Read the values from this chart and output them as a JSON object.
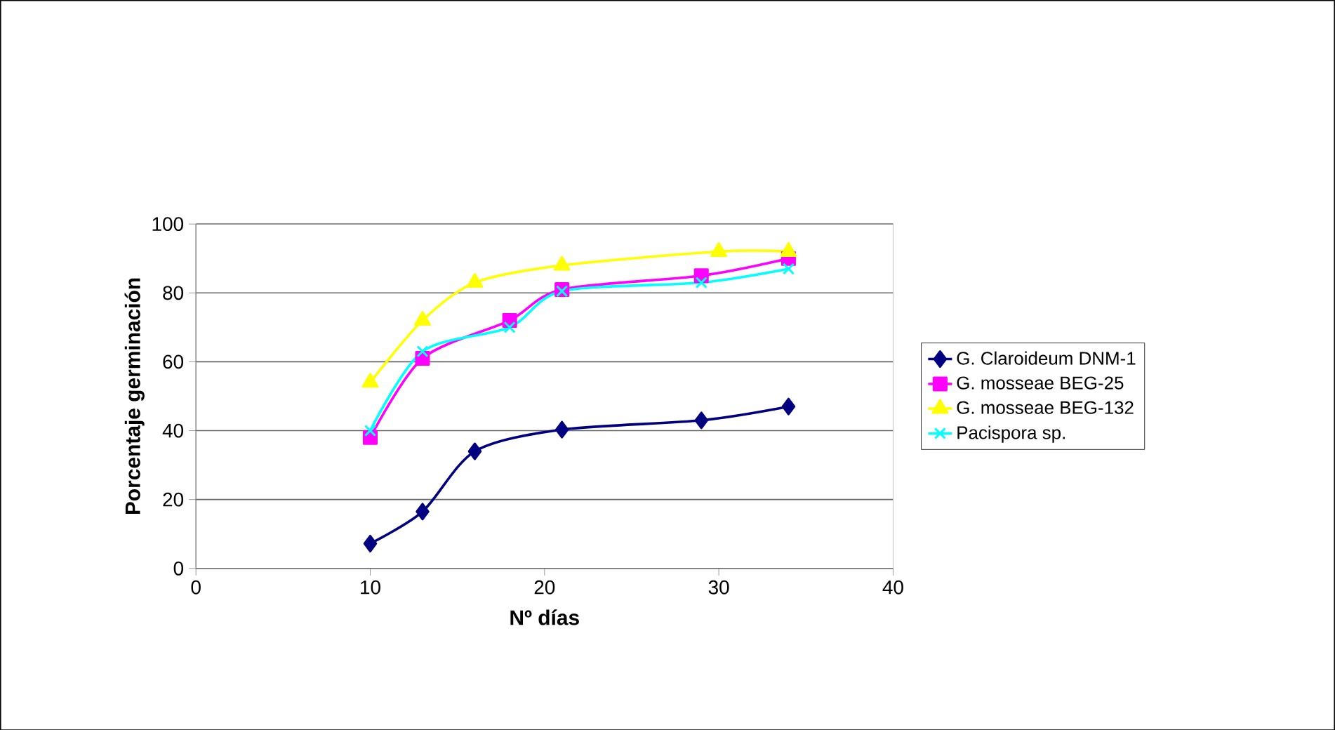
{
  "chart_data": {
    "type": "line",
    "xlabel": "Nº días",
    "ylabel": "Porcentaje germinación",
    "xlim": [
      0,
      40
    ],
    "xticks": [
      0,
      10,
      20,
      30,
      40
    ],
    "ylim": [
      0,
      100
    ],
    "yticks": [
      0,
      20,
      40,
      60,
      80,
      100
    ],
    "grid": "y",
    "legend": "right",
    "series": [
      {
        "name": "G. Claroideum DNM-1",
        "color": "#000080",
        "marker": "diamond",
        "x": [
          10,
          13,
          16,
          21,
          29,
          34
        ],
        "values": [
          7.2,
          16.5,
          34,
          40.3,
          43,
          47
        ]
      },
      {
        "name": "G. mosseae BEG-25",
        "color": "#ff00ff",
        "marker": "square",
        "x": [
          10,
          13,
          18,
          21,
          29,
          34
        ],
        "values": [
          38,
          61,
          72,
          81,
          85,
          90
        ]
      },
      {
        "name": "G. mosseae BEG-132",
        "color": "#ffff00",
        "marker": "triangle",
        "x": [
          10,
          13,
          16,
          21,
          30,
          34
        ],
        "values": [
          54,
          72,
          83,
          88,
          92,
          92
        ]
      },
      {
        "name": "Pacispora sp.",
        "color": "#00ffff",
        "marker": "cross",
        "x": [
          10,
          13,
          18,
          21,
          29,
          34
        ],
        "values": [
          40,
          63,
          70,
          80.5,
          83,
          87
        ]
      }
    ]
  }
}
